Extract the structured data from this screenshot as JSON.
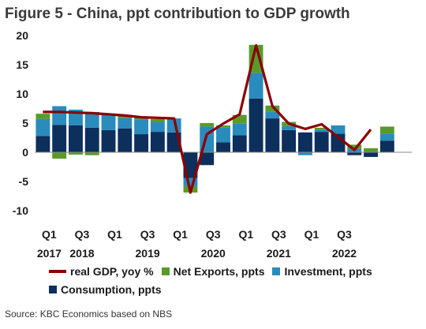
{
  "title": "Figure 5 - China, ppt contribution to GDP growth",
  "source": "Source: KBC Economics based on NBS",
  "colors": {
    "consumption": "#0c2f5c",
    "investment": "#2a8bbd",
    "net_exports": "#5a9a2a",
    "gdp": "#8b0000",
    "axis": "#888888"
  },
  "chart_data": {
    "type": "bar",
    "stacked": true,
    "title": "Figure 5 - China, ppt contribution to GDP growth",
    "xlabel": "",
    "ylabel": "",
    "ylim": [
      -10,
      20
    ],
    "yticks": [
      "20",
      "15",
      "10",
      "5",
      "0",
      "-5",
      "-10"
    ],
    "grid": false,
    "legend_position": "bottom",
    "categories": [
      "2017Q1",
      "2017Q2",
      "2017Q3",
      "2017Q4",
      "2018Q1",
      "2018Q2",
      "2018Q3",
      "2018Q4",
      "2019Q1",
      "2019Q2",
      "2019Q3",
      "2019Q4",
      "2020Q1",
      "2020Q2",
      "2020Q3",
      "2020Q4",
      "2021Q1",
      "2021Q2",
      "2021Q3",
      "2021Q4",
      "2022Q1",
      "2022Q2",
      "2022Q3"
    ],
    "x_tick_labels": [
      {
        "quarter": "Q1",
        "year": "2017"
      },
      {
        "quarter": "Q3",
        "year": "2018"
      },
      {
        "quarter": "Q1",
        "year": ""
      },
      {
        "quarter": "Q3",
        "year": "2019"
      },
      {
        "quarter": "Q1",
        "year": ""
      },
      {
        "quarter": "Q3",
        "year": "2020"
      },
      {
        "quarter": "Q1",
        "year": ""
      },
      {
        "quarter": "Q3",
        "year": "2021"
      },
      {
        "quarter": "Q1",
        "year": ""
      },
      {
        "quarter": "Q3",
        "year": "2022"
      }
    ],
    "series": [
      {
        "name": "Consumption, ppts",
        "kind": "bar",
        "values": [
          2.8,
          4.7,
          4.6,
          4.2,
          3.8,
          4.1,
          3.1,
          3.5,
          3.4,
          -4.4,
          -2.2,
          1.7,
          2.9,
          9.2,
          5.8,
          3.8,
          3.4,
          3.5,
          3.2,
          -0.5,
          -0.8,
          2.0,
          null
        ]
      },
      {
        "name": "Investment, ppts",
        "kind": "bar",
        "values": [
          2.9,
          3.2,
          2.7,
          2.7,
          2.6,
          1.8,
          2.5,
          1.7,
          2.4,
          -1.4,
          4.4,
          2.6,
          2.0,
          4.4,
          1.2,
          0.7,
          -0.5,
          0.4,
          1.4,
          0.6,
          0.0,
          1.2,
          null
        ]
      },
      {
        "name": "Net Exports, ppts",
        "kind": "bar",
        "values": [
          0.9,
          -1.1,
          -0.4,
          -0.5,
          0.0,
          0.5,
          0.4,
          0.5,
          0.0,
          -1.1,
          0.6,
          0.3,
          1.5,
          4.8,
          1.0,
          0.7,
          0.0,
          0.3,
          0.0,
          0.7,
          0.7,
          1.2,
          null
        ]
      },
      {
        "name": "real GDP, yoy %",
        "kind": "line",
        "values": [
          6.9,
          6.9,
          6.8,
          6.7,
          6.5,
          6.3,
          6.0,
          5.9,
          5.8,
          -6.9,
          3.1,
          4.9,
          6.5,
          18.3,
          7.9,
          4.9,
          4.0,
          4.8,
          0.4,
          3.9,
          null,
          null,
          null
        ],
        "x_index": [
          0,
          1,
          2,
          3,
          4,
          5,
          6,
          7,
          8,
          9,
          10,
          11,
          12,
          13,
          14,
          15,
          16,
          17,
          19,
          20,
          null,
          null,
          null
        ]
      }
    ]
  },
  "legend": [
    {
      "label": "real GDP, yoy %",
      "swatch": "line",
      "color": "#8b0000"
    },
    {
      "label": "Net Exports, ppts",
      "swatch": "box",
      "color": "#5a9a2a"
    },
    {
      "label": "Investment, ppts",
      "swatch": "box",
      "color": "#2a8bbd"
    },
    {
      "label": "Consumption, ppts",
      "swatch": "box",
      "color": "#0c2f5c"
    }
  ]
}
